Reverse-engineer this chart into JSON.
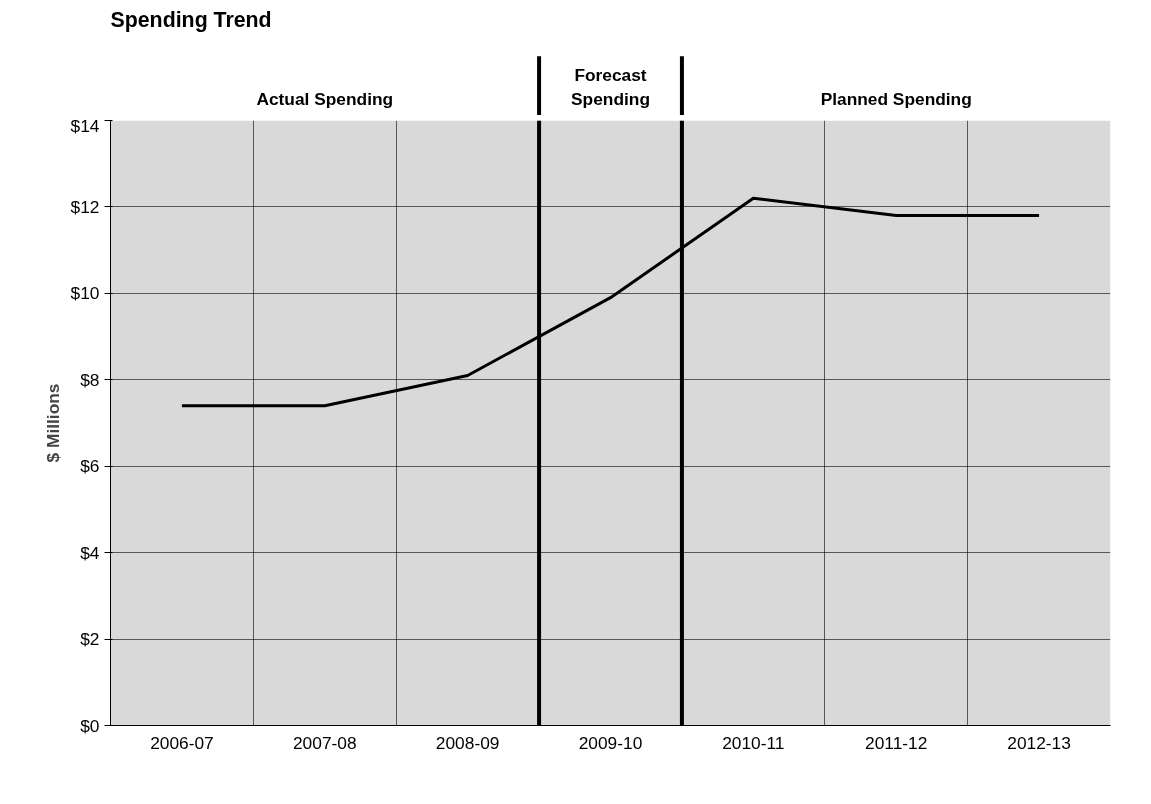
{
  "chart_data": {
    "type": "line",
    "title": "Spending Trend",
    "ylabel": "$ Millions",
    "categories": [
      "2006-07",
      "2007-08",
      "2008-09",
      "2009-10",
      "2010-11",
      "2011-12",
      "2012-13"
    ],
    "series": [
      {
        "color": "#000000",
        "values": [
          7.4,
          7.4,
          8.1,
          9.9,
          12.2,
          11.8,
          11.8
        ]
      }
    ],
    "ylim": [
      0,
      14
    ],
    "yticks": [
      {
        "value": 0,
        "label": "$0"
      },
      {
        "value": 2,
        "label": "$2"
      },
      {
        "value": 4,
        "label": "$4"
      },
      {
        "value": 6,
        "label": "$6"
      },
      {
        "value": 8,
        "label": "$8"
      },
      {
        "value": 10,
        "label": "$10"
      },
      {
        "value": 12,
        "label": "$12"
      },
      {
        "value": 14,
        "label": "$14"
      }
    ],
    "bands": [
      {
        "axis": "x",
        "from": "2006-07",
        "to": "2008-09",
        "label": "Actual Spending",
        "color": "#d9d9d9"
      },
      {
        "axis": "x",
        "from": "2009-10",
        "to": "2009-10",
        "label": "Forecast Spending",
        "color": "#d9d9d9"
      },
      {
        "axis": "x",
        "from": "2010-11",
        "to": "2012-13",
        "label": "Planned Spending",
        "color": "#d9d9d9"
      }
    ],
    "grid": true,
    "marker": "none",
    "line_style": "solid"
  }
}
